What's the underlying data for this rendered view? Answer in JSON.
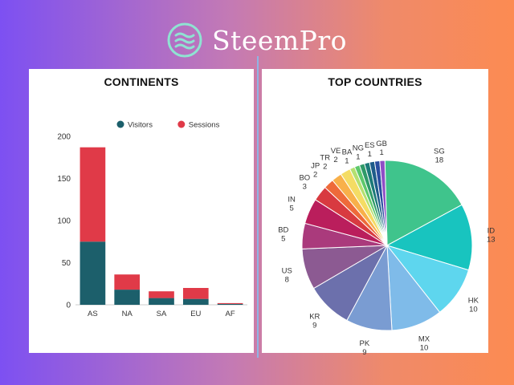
{
  "brand": {
    "name": "SteemPro",
    "logo_icon": "steempro-waves-icon"
  },
  "colors": {
    "visitors": "#1c5f6b",
    "sessions": "#e03a48"
  },
  "chart_data": [
    {
      "type": "bar",
      "stacked": true,
      "title": "CONTINENTS",
      "categories": [
        "AS",
        "NA",
        "SA",
        "EU",
        "AF"
      ],
      "series": [
        {
          "name": "Visitors",
          "values": [
            75,
            18,
            8,
            7,
            1
          ]
        },
        {
          "name": "Sessions",
          "values": [
            112,
            18,
            8,
            13,
            1
          ]
        }
      ],
      "ylim": [
        0,
        200
      ],
      "yticks": [
        0,
        50,
        100,
        150,
        200
      ],
      "legend": "top",
      "grid": false
    },
    {
      "type": "pie",
      "title": "TOP COUNTRIES",
      "slices": [
        {
          "label": "SG",
          "value": 18,
          "color": "#3fc48c"
        },
        {
          "label": "ID",
          "value": 13,
          "color": "#18c4bf"
        },
        {
          "label": "HK",
          "value": 10,
          "color": "#5ed6ee"
        },
        {
          "label": "MX",
          "value": 10,
          "color": "#7fbbe9"
        },
        {
          "label": "PK",
          "value": 9,
          "color": "#7a9cd2"
        },
        {
          "label": "KR",
          "value": 9,
          "color": "#6c70ac"
        },
        {
          "label": "US",
          "value": 8,
          "color": "#8c5a92"
        },
        {
          "label": "BD",
          "value": 5,
          "color": "#aa3a7c"
        },
        {
          "label": "IN",
          "value": 5,
          "color": "#ba1e5c"
        },
        {
          "label": "BO",
          "value": 3,
          "color": "#d83a40"
        },
        {
          "label": "JP",
          "value": 2,
          "color": "#ee6a3a"
        },
        {
          "label": "TR",
          "value": 2,
          "color": "#f8b04a"
        },
        {
          "label": "VE",
          "value": 2,
          "color": "#f4dc64"
        },
        {
          "label": "BA",
          "value": 1,
          "color": "#b4e070"
        },
        {
          "label": "",
          "value": 1,
          "color": "#5ec86c"
        },
        {
          "label": "NG",
          "value": 1,
          "color": "#2e9a68"
        },
        {
          "label": "",
          "value": 1,
          "color": "#1c7a78"
        },
        {
          "label": "ES",
          "value": 1,
          "color": "#1e5c8a"
        },
        {
          "label": "",
          "value": 1,
          "color": "#2a4ea0"
        },
        {
          "label": "GB",
          "value": 1,
          "color": "#8e4ec6"
        }
      ]
    }
  ]
}
